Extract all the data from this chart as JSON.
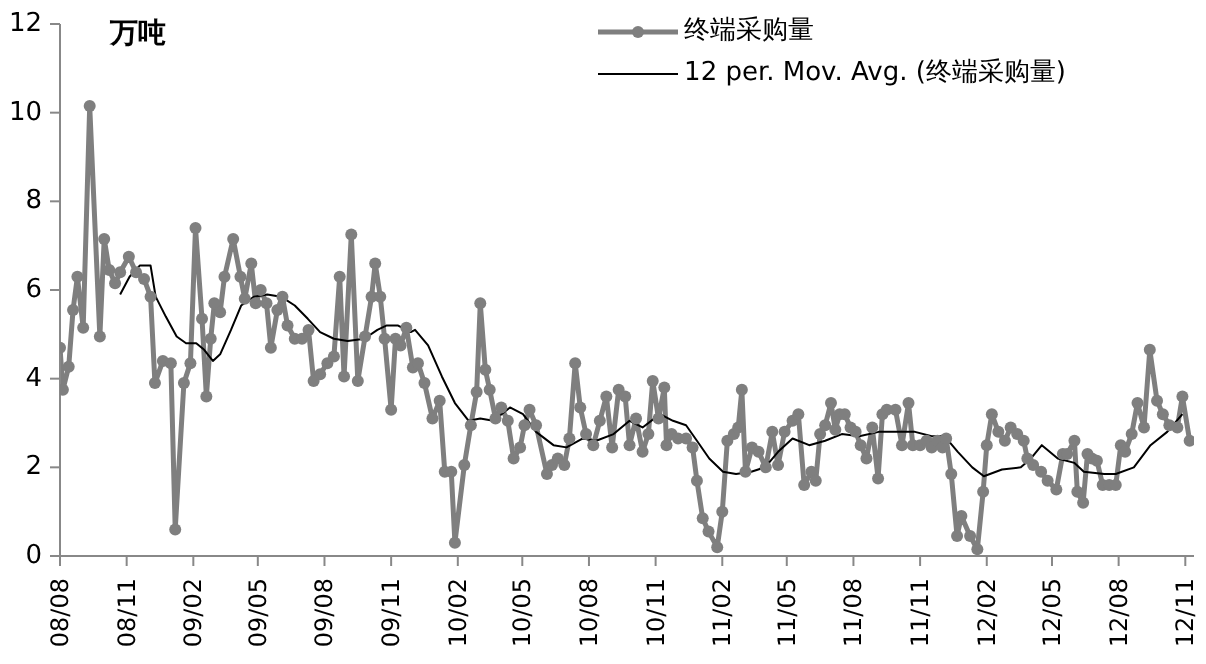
{
  "chart_data": {
    "type": "line",
    "ylabel": "万吨",
    "xlim": [
      "2008-08-01",
      "2012-11-13"
    ],
    "ylim": [
      0,
      12
    ],
    "yticks": [
      0,
      2,
      4,
      6,
      8,
      10,
      12
    ],
    "xticks": [
      {
        "value": "2008-08",
        "label": "08/08"
      },
      {
        "value": "2008-11",
        "label": "08/11"
      },
      {
        "value": "2009-02",
        "label": "09/02"
      },
      {
        "value": "2009-05",
        "label": "09/05"
      },
      {
        "value": "2009-08",
        "label": "09/08"
      },
      {
        "value": "2009-11",
        "label": "09/11"
      },
      {
        "value": "2010-02",
        "label": "10/02"
      },
      {
        "value": "2010-05",
        "label": "10/05"
      },
      {
        "value": "2010-08",
        "label": "10/08"
      },
      {
        "value": "2010-11",
        "label": "10/11"
      },
      {
        "value": "2011-02",
        "label": "11/02"
      },
      {
        "value": "2011-05",
        "label": "11/05"
      },
      {
        "value": "2011-08",
        "label": "11/08"
      },
      {
        "value": "2011-11",
        "label": "11/11"
      },
      {
        "value": "2012-02",
        "label": "12/02"
      },
      {
        "value": "2012-05",
        "label": "12/05"
      },
      {
        "value": "2012-08",
        "label": "12/08"
      },
      {
        "value": "2012-11",
        "label": "12/11"
      }
    ],
    "grid": false,
    "legend": "top right",
    "series": [
      {
        "name": "终端采购量",
        "color": "#7f7f7f",
        "marker": "circle",
        "line_style": "solid",
        "x": [
          "2008-08-01",
          "2008-08-05",
          "2008-08-13",
          "2008-08-19",
          "2008-08-25",
          "2008-09-02",
          "2008-09-11",
          "2008-09-25",
          "2008-10-01",
          "2008-10-08",
          "2008-10-16",
          "2008-10-23",
          "2008-11-04",
          "2008-11-14",
          "2008-11-25",
          "2008-12-04",
          "2008-12-10",
          "2008-12-21",
          "2009-01-01",
          "2009-01-07",
          "2009-01-19",
          "2009-01-28",
          "2009-02-04",
          "2009-02-13",
          "2009-02-19",
          "2009-02-25",
          "2009-03-02",
          "2009-03-10",
          "2009-03-16",
          "2009-03-28",
          "2009-04-07",
          "2009-04-13",
          "2009-04-22",
          "2009-04-28",
          "2009-05-05",
          "2009-05-13",
          "2009-05-19",
          "2009-05-28",
          "2009-06-04",
          "2009-06-11",
          "2009-06-21",
          "2009-07-01",
          "2009-07-10",
          "2009-07-17",
          "2009-07-26",
          "2009-08-05",
          "2009-08-14",
          "2009-08-22",
          "2009-08-28",
          "2009-09-07",
          "2009-09-16",
          "2009-09-26",
          "2009-10-05",
          "2009-10-10",
          "2009-10-17",
          "2009-10-23",
          "2009-11-01",
          "2009-11-07",
          "2009-11-14",
          "2009-11-22",
          "2009-12-01",
          "2009-12-08",
          "2009-12-17",
          "2009-12-28",
          "2010-01-07",
          "2010-01-14",
          "2010-01-23",
          "2010-01-28",
          "2010-02-10",
          "2010-02-19",
          "2010-02-27",
          "2010-03-04",
          "2010-03-11",
          "2010-03-17",
          "2010-03-25",
          "2010-04-02",
          "2010-04-11",
          "2010-04-19",
          "2010-04-28",
          "2010-05-04",
          "2010-05-11",
          "2010-05-20",
          "2010-06-04",
          "2010-06-11",
          "2010-06-19",
          "2010-06-28",
          "2010-07-05",
          "2010-07-13",
          "2010-07-20",
          "2010-07-28",
          "2010-08-07",
          "2010-08-16",
          "2010-08-25",
          "2010-09-02",
          "2010-09-11",
          "2010-09-20",
          "2010-09-26",
          "2010-10-05",
          "2010-10-14",
          "2010-10-22",
          "2010-10-28",
          "2010-11-05",
          "2010-11-13",
          "2010-11-16",
          "2010-11-23",
          "2010-12-02",
          "2010-12-13",
          "2010-12-22",
          "2010-12-28",
          "2011-01-05",
          "2011-01-13",
          "2011-01-25",
          "2011-02-01",
          "2011-02-08",
          "2011-02-17",
          "2011-02-23",
          "2011-02-28",
          "2011-03-05",
          "2011-03-14",
          "2011-03-23",
          "2011-04-02",
          "2011-04-11",
          "2011-04-19",
          "2011-04-28",
          "2011-05-09",
          "2011-05-17",
          "2011-05-25",
          "2011-06-04",
          "2011-06-10",
          "2011-06-16",
          "2011-06-23",
          "2011-07-01",
          "2011-07-07",
          "2011-07-13",
          "2011-07-20",
          "2011-07-28",
          "2011-08-04",
          "2011-08-11",
          "2011-08-19",
          "2011-08-27",
          "2011-09-04",
          "2011-09-10",
          "2011-09-16",
          "2011-09-28",
          "2011-10-07",
          "2011-10-16",
          "2011-10-22",
          "2011-11-01",
          "2011-11-10",
          "2011-11-17",
          "2011-11-25",
          "2011-12-02",
          "2011-12-07",
          "2011-12-14",
          "2011-12-22",
          "2011-12-28",
          "2012-01-09",
          "2012-01-19",
          "2012-01-27",
          "2012-02-01",
          "2012-02-08",
          "2012-02-17",
          "2012-02-26",
          "2012-03-05",
          "2012-03-14",
          "2012-03-23",
          "2012-03-28",
          "2012-04-05",
          "2012-04-16",
          "2012-04-25",
          "2012-05-07",
          "2012-05-16",
          "2012-05-22",
          "2012-06-01",
          "2012-06-05",
          "2012-06-13",
          "2012-06-19",
          "2012-06-25",
          "2012-07-02",
          "2012-07-10",
          "2012-07-19",
          "2012-07-28",
          "2012-08-04",
          "2012-08-10",
          "2012-08-19",
          "2012-08-27",
          "2012-09-05",
          "2012-09-13",
          "2012-09-23",
          "2012-10-01",
          "2012-10-10",
          "2012-10-21",
          "2012-10-28",
          "2012-11-07"
        ],
        "values": [
          4.7,
          3.75,
          4.27,
          5.55,
          6.3,
          5.15,
          10.15,
          4.95,
          7.15,
          6.45,
          6.15,
          6.4,
          6.75,
          6.4,
          6.25,
          5.85,
          3.9,
          4.4,
          4.35,
          0.6,
          3.9,
          4.35,
          7.4,
          5.35,
          3.6,
          4.9,
          5.7,
          5.5,
          6.3,
          7.15,
          6.3,
          5.8,
          6.6,
          5.7,
          6.0,
          5.7,
          4.7,
          5.55,
          5.85,
          5.2,
          4.9,
          4.9,
          5.1,
          3.95,
          4.1,
          4.35,
          4.5,
          6.3,
          4.05,
          7.25,
          3.95,
          4.95,
          5.85,
          6.6,
          5.85,
          4.9,
          3.3,
          4.9,
          4.75,
          5.15,
          4.25,
          4.35,
          3.9,
          3.1,
          3.5,
          1.9,
          1.9,
          0.3,
          2.05,
          2.95,
          3.7,
          5.7,
          4.2,
          3.75,
          3.1,
          3.35,
          3.05,
          2.2,
          2.45,
          2.95,
          3.3,
          2.95,
          1.85,
          2.05,
          2.2,
          2.05,
          2.65,
          4.35,
          3.35,
          2.75,
          2.5,
          3.05,
          3.6,
          2.45,
          3.75,
          3.6,
          2.5,
          3.1,
          2.35,
          2.75,
          3.95,
          3.1,
          3.8,
          2.5,
          2.75,
          2.65,
          2.65,
          2.45,
          1.7,
          0.85,
          0.55,
          0.2,
          1.0,
          2.6,
          2.75,
          2.9,
          3.75,
          1.9,
          2.45,
          2.35,
          2.0,
          2.8,
          2.05,
          2.8,
          3.05,
          3.2,
          1.6,
          1.9,
          1.7,
          2.75,
          2.95,
          3.45,
          2.85,
          3.2,
          3.2,
          2.9,
          2.8,
          2.5,
          2.2,
          2.9,
          1.75,
          3.2,
          3.3,
          3.3,
          2.5,
          3.45,
          2.5,
          2.5,
          2.6,
          2.45,
          2.6,
          2.45,
          2.65,
          1.85,
          0.45,
          0.9,
          0.45,
          0.15,
          1.45,
          2.5,
          3.2,
          2.8,
          2.6,
          2.9,
          2.75,
          2.6,
          2.2,
          2.05,
          1.9,
          1.7,
          1.5,
          2.3,
          2.3,
          2.6,
          1.45,
          1.2,
          2.3,
          2.2,
          2.15,
          1.6,
          1.6,
          1.6,
          2.5,
          2.35,
          2.75,
          3.45,
          2.9,
          4.65,
          3.5,
          3.2,
          2.95,
          2.9,
          3.6,
          2.6
        ]
      },
      {
        "name": "12 per. Mov. Avg. (终端采购量)",
        "color": "#000000",
        "marker": "none",
        "line_style": "solid",
        "x": [
          "2008-10-23",
          "2008-11-05",
          "2008-11-19",
          "2008-12-04",
          "2008-12-11",
          "2008-12-25",
          "2009-01-09",
          "2009-01-22",
          "2009-02-05",
          "2009-02-16",
          "2009-02-28",
          "2009-03-10",
          "2009-03-25",
          "2009-04-08",
          "2009-04-26",
          "2009-05-14",
          "2009-06-02",
          "2009-06-21",
          "2009-07-09",
          "2009-07-26",
          "2009-08-14",
          "2009-09-02",
          "2009-09-25",
          "2009-10-13",
          "2009-10-26",
          "2009-11-10",
          "2009-11-28",
          "2009-12-04",
          "2009-12-22",
          "2010-01-10",
          "2010-01-28",
          "2010-02-16",
          "2010-03-04",
          "2010-03-22",
          "2010-04-14",
          "2010-05-02",
          "2010-05-20",
          "2010-06-13",
          "2010-07-01",
          "2010-07-23",
          "2010-08-11",
          "2010-09-04",
          "2010-09-26",
          "2010-10-14",
          "2010-11-07",
          "2010-11-25",
          "2010-12-13",
          "2010-12-28",
          "2011-01-14",
          "2011-02-02",
          "2011-02-20",
          "2011-03-13",
          "2011-04-01",
          "2011-04-19",
          "2011-05-09",
          "2011-06-01",
          "2011-06-23",
          "2011-07-16",
          "2011-08-09",
          "2011-09-05",
          "2011-10-03",
          "2011-10-25",
          "2011-11-17",
          "2011-12-05",
          "2011-12-23",
          "2012-01-12",
          "2012-01-28",
          "2012-02-22",
          "2012-03-19",
          "2012-04-02",
          "2012-04-17",
          "2012-05-09",
          "2012-06-01",
          "2012-06-14",
          "2012-07-12",
          "2012-07-28",
          "2012-08-22",
          "2012-09-14",
          "2012-10-07",
          "2012-10-28"
        ],
        "values": [
          5.9,
          6.3,
          6.55,
          6.55,
          5.85,
          5.4,
          4.95,
          4.8,
          4.8,
          4.65,
          4.4,
          4.55,
          5.1,
          5.65,
          5.85,
          5.9,
          5.85,
          5.65,
          5.35,
          5.05,
          4.9,
          4.85,
          4.9,
          5.1,
          5.2,
          5.2,
          5.05,
          5.1,
          4.75,
          4.05,
          3.45,
          3.05,
          3.1,
          3.05,
          3.35,
          3.2,
          2.8,
          2.5,
          2.45,
          2.65,
          2.6,
          2.75,
          3.05,
          2.9,
          3.2,
          3.05,
          2.95,
          2.6,
          2.2,
          1.9,
          1.85,
          1.9,
          2.0,
          2.35,
          2.65,
          2.5,
          2.6,
          2.75,
          2.7,
          2.8,
          2.8,
          2.8,
          2.7,
          2.7,
          2.35,
          2.0,
          1.8,
          1.95,
          2.0,
          2.2,
          2.5,
          2.2,
          2.1,
          1.9,
          1.85,
          1.85,
          2.0,
          2.5,
          2.8,
          3.2
        ]
      }
    ]
  }
}
